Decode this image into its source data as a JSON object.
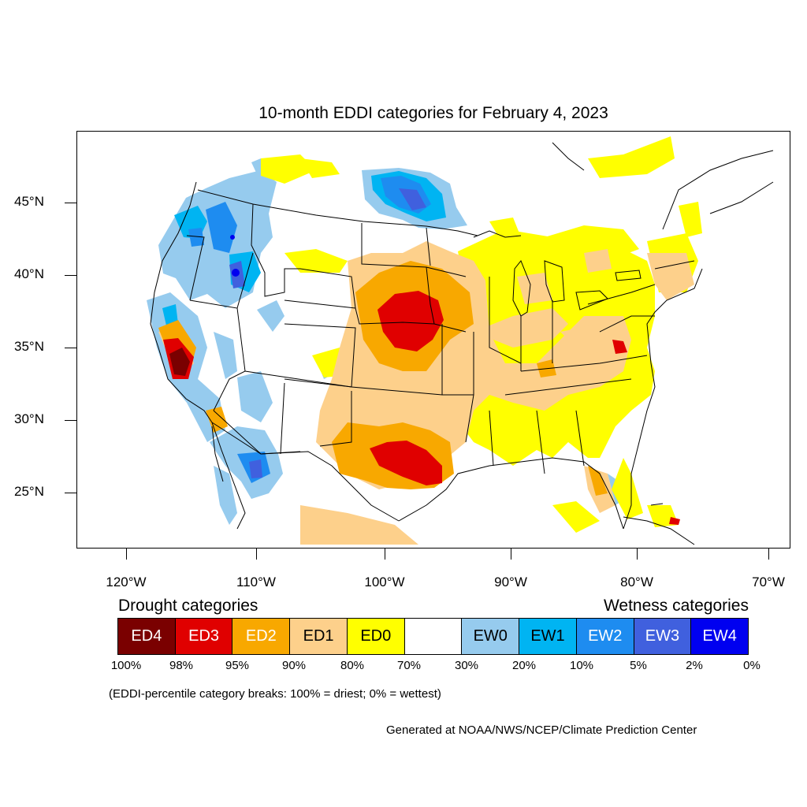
{
  "title": "10-month EDDI categories for February 4, 2023",
  "map": {
    "lat_labels": [
      "45°N",
      "40°N",
      "35°N",
      "30°N",
      "25°N"
    ],
    "lon_labels": [
      "120°W",
      "110°W",
      "100°W",
      "90°W",
      "80°W",
      "70°W"
    ],
    "colors": {
      "ED4": "#7a0000",
      "ED3": "#e00000",
      "ED2": "#f8a800",
      "ED1": "#fdd08b",
      "ED0": "#ffff00",
      "neutral": "#ffffff",
      "EW0": "#96cbee",
      "EW1": "#00b4f2",
      "EW2": "#1e8cf0",
      "EW3": "#4060de",
      "EW4": "#0000f0"
    }
  },
  "legend": {
    "drought_heading": "Drought categories",
    "wetness_heading": "Wetness categories",
    "boxes": [
      {
        "label": "ED4",
        "color": "#7a0000",
        "text_color": "#ffffff"
      },
      {
        "label": "ED3",
        "color": "#e00000",
        "text_color": "#ffffff"
      },
      {
        "label": "ED2",
        "color": "#f8a800",
        "text_color": "#ffffff"
      },
      {
        "label": "ED1",
        "color": "#fdd08b",
        "text_color": "#000000"
      },
      {
        "label": "ED0",
        "color": "#ffff00",
        "text_color": "#000000"
      },
      {
        "label": "",
        "color": "#ffffff",
        "text_color": "#000000"
      },
      {
        "label": "EW0",
        "color": "#96cbee",
        "text_color": "#000000"
      },
      {
        "label": "EW1",
        "color": "#00b4f2",
        "text_color": "#000000"
      },
      {
        "label": "EW2",
        "color": "#1e8cf0",
        "text_color": "#ffffff"
      },
      {
        "label": "EW3",
        "color": "#4060de",
        "text_color": "#ffffff"
      },
      {
        "label": "EW4",
        "color": "#0000f0",
        "text_color": "#ffffff"
      }
    ],
    "breaks": [
      "100%",
      "98%",
      "95%",
      "90%",
      "80%",
      "70%",
      "30%",
      "20%",
      "10%",
      "5%",
      "2%",
      "0%"
    ]
  },
  "note": "(EDDI-percentile category breaks: 100% = driest; 0% = wettest)",
  "credit": "Generated at NOAA/NWS/NCEP/Climate Prediction Center"
}
